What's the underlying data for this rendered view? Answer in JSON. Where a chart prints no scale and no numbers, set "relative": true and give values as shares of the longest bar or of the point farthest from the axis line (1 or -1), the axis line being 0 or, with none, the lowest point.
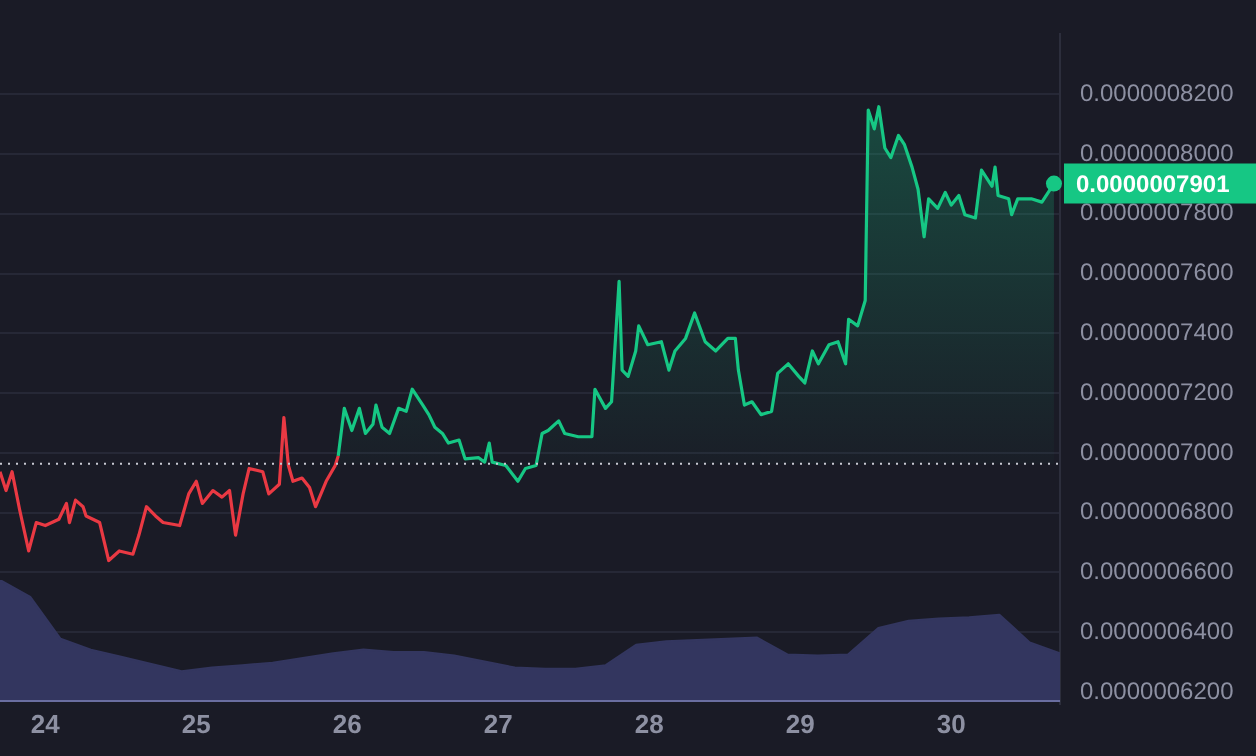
{
  "chart_data": [
    {
      "type": "area",
      "x": [
        23.7,
        23.74,
        23.78,
        23.83,
        23.89,
        23.94,
        24.0,
        24.09,
        24.14,
        24.16,
        24.2,
        24.25,
        24.27,
        24.36,
        24.42,
        24.49,
        24.58,
        24.62,
        24.67,
        24.73,
        24.78,
        24.89,
        24.95,
        25.0,
        25.04,
        25.11,
        25.17,
        25.22,
        25.26,
        25.31,
        25.35,
        25.44,
        25.48,
        25.55,
        25.58,
        25.61,
        25.64,
        25.7,
        25.75,
        25.79,
        25.86,
        25.92,
        25.94,
        25.98,
        26.03,
        26.08,
        26.12,
        26.17,
        26.19,
        26.23,
        26.28,
        26.34,
        26.39,
        26.43,
        26.5,
        26.54,
        26.58,
        26.63,
        26.67,
        26.74,
        26.78,
        26.87,
        26.91,
        26.94,
        26.96,
        27.05,
        27.13,
        27.18,
        27.25,
        27.29,
        27.33,
        27.4,
        27.44,
        27.53,
        27.62,
        27.64,
        27.71,
        27.75,
        27.8,
        27.82,
        27.86,
        27.91,
        27.93,
        27.99,
        28.08,
        28.13,
        28.17,
        28.24,
        28.3,
        28.37,
        28.44,
        28.52,
        28.57,
        28.59,
        28.63,
        28.68,
        28.74,
        28.81,
        28.85,
        28.92,
        28.99,
        29.03,
        29.08,
        29.12,
        29.19,
        29.25,
        29.3,
        29.32,
        29.38,
        29.43,
        29.45,
        29.49,
        29.52,
        29.56,
        29.6,
        29.65,
        29.69,
        29.74,
        29.78,
        29.82,
        29.85,
        29.91,
        29.96,
        30.0,
        30.05,
        30.09,
        30.16,
        30.2,
        30.27,
        30.29,
        30.31,
        30.38,
        30.4,
        30.44,
        30.53,
        30.6,
        30.68
      ],
      "series": [
        {
          "color": "#16c784",
          "values": [
            null,
            null,
            null,
            null,
            null,
            null,
            null,
            null,
            null,
            null,
            null,
            null,
            null,
            null,
            null,
            null,
            null,
            null,
            null,
            null,
            null,
            null,
            null,
            null,
            null,
            null,
            null,
            null,
            null,
            null,
            null,
            null,
            null,
            null,
            null,
            null,
            null,
            null,
            null,
            null,
            null,
            null,
            6.99e-07,
            7.149e-07,
            7.075e-07,
            7.149e-07,
            7.065e-07,
            7.096e-07,
            7.16e-07,
            7.086e-07,
            7.065e-07,
            7.149e-07,
            7.139e-07,
            7.213e-07,
            7.16e-07,
            7.128e-07,
            7.086e-07,
            7.065e-07,
            7.033e-07,
            7.043e-07,
            6.98e-07,
            6.984e-07,
            6.969e-07,
            7.033e-07,
            6.969e-07,
            6.958e-07,
            6.905e-07,
            6.948e-07,
            6.958e-07,
            7.065e-07,
            7.075e-07,
            7.107e-07,
            7.065e-07,
            7.054e-07,
            7.054e-07,
            7.213e-07,
            7.149e-07,
            7.171e-07,
            7.574e-07,
            7.277e-07,
            7.256e-07,
            7.341e-07,
            7.425e-07,
            7.362e-07,
            7.372e-07,
            7.277e-07,
            7.341e-07,
            7.383e-07,
            7.468e-07,
            7.372e-07,
            7.341e-07,
            7.383e-07,
            7.383e-07,
            7.277e-07,
            7.16e-07,
            7.171e-07,
            7.128e-07,
            7.139e-07,
            7.266e-07,
            7.298e-07,
            7.256e-07,
            7.234e-07,
            7.341e-07,
            7.298e-07,
            7.362e-07,
            7.372e-07,
            7.298e-07,
            7.447e-07,
            7.425e-07,
            7.51e-07,
            8.147e-07,
            8.084e-07,
            8.158e-07,
            8.02e-07,
            7.988e-07,
            8.062e-07,
            8.031e-07,
            7.956e-07,
            7.882e-07,
            7.723e-07,
            7.85e-07,
            7.818e-07,
            7.871e-07,
            7.829e-07,
            7.861e-07,
            7.797e-07,
            7.786e-07,
            7.946e-07,
            7.892e-07,
            7.956e-07,
            7.861e-07,
            7.85e-07,
            7.797e-07,
            7.85e-07,
            7.85e-07,
            7.839e-07,
            7.901e-07
          ]
        },
        {
          "type": "line",
          "color": "#ea3943",
          "values": [
            6.937e-07,
            6.874e-07,
            6.937e-07,
            6.81e-07,
            6.672e-07,
            6.767e-07,
            6.757e-07,
            6.778e-07,
            6.831e-07,
            6.767e-07,
            6.842e-07,
            6.82e-07,
            6.789e-07,
            6.767e-07,
            6.64e-07,
            6.672e-07,
            6.661e-07,
            6.725e-07,
            6.82e-07,
            6.789e-07,
            6.767e-07,
            6.757e-07,
            6.863e-07,
            6.905e-07,
            6.831e-07,
            6.874e-07,
            6.852e-07,
            6.874e-07,
            6.725e-07,
            6.863e-07,
            6.948e-07,
            6.937e-07,
            6.863e-07,
            6.895e-07,
            7.118e-07,
            6.958e-07,
            6.905e-07,
            6.916e-07,
            6.884e-07,
            6.82e-07,
            6.905e-07,
            6.958e-07,
            6.99e-07,
            null,
            null,
            null,
            null,
            null,
            null,
            null,
            null,
            null,
            null,
            null,
            null,
            null,
            null,
            null,
            null,
            null,
            null,
            null,
            null,
            null,
            null,
            null,
            null,
            null,
            null,
            null,
            null,
            null,
            null,
            null,
            null,
            null,
            null,
            null,
            null,
            null,
            null,
            null,
            null,
            null,
            null,
            null,
            null,
            null,
            null,
            null,
            null,
            null,
            null,
            null,
            null,
            null,
            null,
            null,
            null,
            null,
            null,
            null,
            null,
            null,
            null,
            null,
            null,
            null,
            null,
            null,
            null,
            null,
            null,
            null,
            null,
            null,
            null,
            null,
            null,
            null,
            null,
            null,
            null,
            null,
            null,
            null,
            null,
            null,
            null,
            null,
            null,
            null,
            null,
            null,
            null,
            null,
            null
          ]
        }
      ],
      "xlim": [
        23.7,
        30.72
      ],
      "xticks": [
        24,
        25,
        26,
        27,
        28,
        29,
        30
      ],
      "ylim": [
        6.16e-07,
        8.4e-07
      ],
      "yticks": [
        {
          "value": 6.2e-07,
          "label": "0.0000006200"
        },
        {
          "value": 6.4e-07,
          "label": "0.0000006400"
        },
        {
          "value": 6.6e-07,
          "label": "0.0000006600"
        },
        {
          "value": 6.8e-07,
          "label": "0.0000006800"
        },
        {
          "value": 7e-07,
          "label": "0.0000007000"
        },
        {
          "value": 7.2e-07,
          "label": "0.0000007200"
        },
        {
          "value": 7.4e-07,
          "label": "0.0000007400"
        },
        {
          "value": 7.6e-07,
          "label": "0.0000007600"
        },
        {
          "value": 7.8e-07,
          "label": "0.0000007800"
        },
        {
          "value": 8e-07,
          "label": "0.0000008000"
        },
        {
          "value": 8.2e-07,
          "label": "0.0000008200"
        }
      ],
      "grid": "y",
      "legend": false,
      "ref_lines": [
        {
          "axis": "y",
          "value": 6.964e-07,
          "color": "#c8c9d2",
          "line_style": "dotted"
        }
      ],
      "annotations": [
        {
          "text": "0.0000007901",
          "x": 30.68,
          "y": 7.901e-07
        }
      ]
    },
    {
      "type": "area",
      "relative": true,
      "legend": false,
      "categories": [
        null,
        null,
        null,
        null,
        null,
        null,
        null,
        null,
        null,
        null,
        null,
        null,
        null,
        null,
        null,
        null,
        null,
        null,
        null,
        null,
        null,
        null,
        null,
        null,
        null,
        null,
        null,
        null,
        null,
        null,
        null,
        null,
        null,
        null,
        null,
        null
      ],
      "series": [
        {
          "color": "#33365f",
          "values": [
            1,
            0.86,
            0.51,
            0.42,
            0.36,
            0.3,
            0.24,
            0.27,
            0.29,
            0.31,
            0.35,
            0.39,
            0.42,
            0.4,
            0.4,
            0.37,
            0.32,
            0.27,
            0.26,
            0.26,
            0.29,
            0.46,
            0.49,
            0.5,
            0.51,
            0.52,
            0.38,
            0.37,
            0.38,
            0.6,
            0.66,
            0.68,
            0.69,
            0.71,
            0.48,
            0.39
          ]
        }
      ]
    }
  ]
}
